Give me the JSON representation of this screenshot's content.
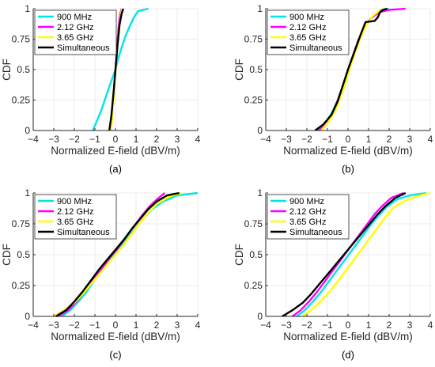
{
  "series_style": {
    "900 MHz": "#00e5e5",
    "2.12 GHz": "#ff00ff",
    "3.65 GHz": "#ffff00",
    "Simultaneous": "#000000"
  },
  "chart_data": [
    {
      "type": "line",
      "panel_label": "(a)",
      "xlabel": "Normalized E-field (dBV/m)",
      "ylabel": "CDF",
      "xlim": [
        -4,
        4
      ],
      "ylim": [
        0,
        1
      ],
      "xticks": [
        "−4",
        "−3",
        "−2",
        "−1",
        "0",
        "1",
        "2",
        "3",
        "4"
      ],
      "yticks": [
        "0",
        "0.25",
        "0.5",
        "0.75",
        "1"
      ],
      "grid": true,
      "legend": {
        "placement": "top-left",
        "entries": [
          "900 MHz",
          "2.12 GHz",
          "3.65 GHz",
          "Simultaneous"
        ]
      },
      "series": [
        {
          "name": "900 MHz",
          "x": [
            -1.1,
            -0.9,
            -0.7,
            -0.5,
            -0.3,
            -0.15,
            0,
            0.15,
            0.3,
            0.5,
            0.7,
            0.9,
            1.1,
            1.6
          ],
          "y": [
            0,
            0.08,
            0.16,
            0.26,
            0.36,
            0.43,
            0.5,
            0.6,
            0.68,
            0.78,
            0.86,
            0.93,
            0.98,
            1
          ]
        },
        {
          "name": "2.12 GHz",
          "x": [
            -0.22,
            -0.15,
            -0.08,
            0,
            0.08,
            0.15,
            0.22,
            0.3
          ],
          "y": [
            0,
            0.15,
            0.3,
            0.5,
            0.7,
            0.85,
            0.95,
            1
          ]
        },
        {
          "name": "3.65 GHz",
          "x": [
            -0.22,
            -0.14,
            -0.06,
            0.02,
            0.1,
            0.18,
            0.26,
            0.32
          ],
          "y": [
            0,
            0.15,
            0.33,
            0.52,
            0.7,
            0.85,
            0.95,
            1
          ]
        },
        {
          "name": "Simultaneous",
          "x": [
            -0.3,
            -0.2,
            -0.1,
            0,
            0.1,
            0.2,
            0.3,
            0.38
          ],
          "y": [
            0,
            0.12,
            0.3,
            0.5,
            0.7,
            0.87,
            0.96,
            1
          ]
        }
      ]
    },
    {
      "type": "line",
      "panel_label": "(b)",
      "xlabel": "Normalized E-field (dBV/m)",
      "ylabel": "CDF",
      "xlim": [
        -4,
        4
      ],
      "ylim": [
        0,
        1
      ],
      "xticks": [
        "−4",
        "−3",
        "−2",
        "−1",
        "0",
        "1",
        "2",
        "3",
        "4"
      ],
      "yticks": [
        "0",
        "0.25",
        "0.5",
        "0.75",
        "1"
      ],
      "grid": true,
      "legend": {
        "placement": "top-left",
        "entries": [
          "900 MHz",
          "2.12 GHz",
          "3.65 GHz",
          "Simultaneous"
        ]
      },
      "series": [
        {
          "name": "900 MHz",
          "x": [
            -1.5,
            -1.1,
            -0.8,
            -0.5,
            -0.25,
            0,
            0.25,
            0.5,
            0.75,
            1.0,
            1.3,
            1.6,
            2.0
          ],
          "y": [
            0,
            0.06,
            0.14,
            0.25,
            0.37,
            0.5,
            0.62,
            0.74,
            0.84,
            0.9,
            0.95,
            0.99,
            1
          ]
        },
        {
          "name": "2.12 GHz",
          "x": [
            -1.4,
            -1.0,
            -0.7,
            -0.45,
            -0.2,
            0,
            0.25,
            0.5,
            0.8,
            1.1,
            1.5,
            2.0,
            2.8
          ],
          "y": [
            0,
            0.07,
            0.16,
            0.27,
            0.39,
            0.5,
            0.62,
            0.74,
            0.85,
            0.92,
            0.97,
            0.99,
            1
          ]
        },
        {
          "name": "3.65 GHz",
          "x": [
            -1.3,
            -0.95,
            -0.6,
            -0.35,
            -0.1,
            0.1,
            0.35,
            0.6,
            0.9,
            1.2,
            1.5,
            1.8
          ],
          "y": [
            0,
            0.07,
            0.17,
            0.28,
            0.4,
            0.52,
            0.64,
            0.76,
            0.87,
            0.94,
            0.98,
            1
          ]
        },
        {
          "name": "Simultaneous",
          "x": [
            -1.6,
            -1.2,
            -0.8,
            -0.5,
            -0.25,
            0,
            0.3,
            0.6,
            0.85,
            1.3,
            1.45,
            1.55,
            1.7,
            1.9
          ],
          "y": [
            0,
            0.05,
            0.13,
            0.24,
            0.37,
            0.5,
            0.64,
            0.78,
            0.89,
            0.9,
            0.93,
            0.97,
            0.99,
            1
          ]
        }
      ]
    },
    {
      "type": "line",
      "panel_label": "(c)",
      "xlabel": "Normalized E-field (dBV/m)",
      "ylabel": "CDF",
      "xlim": [
        -4,
        4
      ],
      "ylim": [
        0,
        1
      ],
      "xticks": [
        "−4",
        "−3",
        "−2",
        "−1",
        "0",
        "1",
        "2",
        "3",
        "4"
      ],
      "yticks": [
        "0",
        "0.25",
        "0.5",
        "0.75",
        "1"
      ],
      "grid": true,
      "legend": {
        "placement": "top-left",
        "entries": [
          "900 MHz",
          "2.12 GHz",
          "3.65 GHz",
          "Simultaneous"
        ]
      },
      "series": [
        {
          "name": "900 MHz",
          "x": [
            -2.6,
            -2.2,
            -1.8,
            -1.4,
            -1.0,
            -0.6,
            -0.2,
            0.2,
            0.6,
            1.0,
            1.4,
            1.8,
            2.3,
            3.0,
            4.0
          ],
          "y": [
            0,
            0.05,
            0.12,
            0.2,
            0.3,
            0.4,
            0.48,
            0.56,
            0.64,
            0.72,
            0.8,
            0.87,
            0.93,
            0.98,
            1
          ]
        },
        {
          "name": "2.12 GHz",
          "x": [
            -2.8,
            -2.3,
            -1.9,
            -1.5,
            -1.1,
            -0.7,
            -0.3,
            0.1,
            0.5,
            0.9,
            1.3,
            1.7,
            2.1,
            2.4
          ],
          "y": [
            0,
            0.05,
            0.12,
            0.2,
            0.29,
            0.38,
            0.47,
            0.55,
            0.64,
            0.73,
            0.82,
            0.9,
            0.96,
            1
          ]
        },
        {
          "name": "3.65 GHz",
          "x": [
            -3.0,
            -2.5,
            -2.0,
            -1.6,
            -1.2,
            -0.8,
            -0.4,
            0,
            0.4,
            0.8,
            1.2,
            1.6,
            2.0,
            2.6,
            3.2
          ],
          "y": [
            0,
            0.05,
            0.11,
            0.18,
            0.26,
            0.34,
            0.42,
            0.5,
            0.58,
            0.67,
            0.76,
            0.84,
            0.91,
            0.97,
            1
          ]
        },
        {
          "name": "Simultaneous",
          "x": [
            -2.9,
            -2.4,
            -2.0,
            -1.6,
            -1.2,
            -0.8,
            -0.4,
            0,
            0.4,
            0.8,
            1.2,
            1.6,
            2.0,
            2.5,
            3.1
          ],
          "y": [
            0,
            0.05,
            0.12,
            0.2,
            0.29,
            0.38,
            0.46,
            0.54,
            0.62,
            0.71,
            0.79,
            0.87,
            0.93,
            0.98,
            1
          ]
        }
      ]
    },
    {
      "type": "line",
      "panel_label": "(d)",
      "xlabel": "Normalized E-field (dBV/m)",
      "ylabel": "CDF",
      "xlim": [
        -4,
        4
      ],
      "ylim": [
        0,
        1
      ],
      "xticks": [
        "−4",
        "−3",
        "−2",
        "−1",
        "0",
        "1",
        "2",
        "3",
        "4"
      ],
      "yticks": [
        "0",
        "0.25",
        "0.5",
        "0.75",
        "1"
      ],
      "grid": true,
      "legend": {
        "placement": "top-left",
        "entries": [
          "900 MHz",
          "2.12 GHz",
          "3.65 GHz",
          "Simultaneous"
        ]
      },
      "series": [
        {
          "name": "900 MHz",
          "x": [
            -2.5,
            -2.1,
            -1.7,
            -1.3,
            -0.9,
            -0.5,
            -0.1,
            0.3,
            0.7,
            1.1,
            1.5,
            1.9,
            2.4,
            3.0,
            3.8
          ],
          "y": [
            0,
            0.05,
            0.12,
            0.2,
            0.29,
            0.38,
            0.47,
            0.56,
            0.65,
            0.74,
            0.82,
            0.89,
            0.95,
            0.98,
            1
          ]
        },
        {
          "name": "2.12 GHz",
          "x": [
            -2.7,
            -2.3,
            -1.9,
            -1.5,
            -1.1,
            -0.7,
            -0.3,
            0.1,
            0.5,
            0.9,
            1.3,
            1.7,
            2.1,
            2.7
          ],
          "y": [
            0,
            0.05,
            0.12,
            0.2,
            0.29,
            0.38,
            0.47,
            0.56,
            0.65,
            0.74,
            0.83,
            0.9,
            0.96,
            1
          ]
        },
        {
          "name": "3.65 GHz",
          "x": [
            -2.2,
            -1.8,
            -1.4,
            -1.0,
            -0.6,
            -0.2,
            0.2,
            0.6,
            1.0,
            1.4,
            1.8,
            2.2,
            2.8,
            3.5,
            4.0
          ],
          "y": [
            0,
            0.05,
            0.11,
            0.18,
            0.26,
            0.35,
            0.44,
            0.53,
            0.62,
            0.71,
            0.8,
            0.88,
            0.94,
            0.98,
            1
          ]
        },
        {
          "name": "Simultaneous",
          "x": [
            -3.2,
            -2.7,
            -2.2,
            -1.8,
            -1.4,
            -1.0,
            -0.6,
            -0.2,
            0.2,
            0.6,
            1.0,
            1.4,
            1.8,
            2.3,
            2.8
          ],
          "y": [
            0,
            0.05,
            0.11,
            0.18,
            0.26,
            0.34,
            0.42,
            0.5,
            0.58,
            0.66,
            0.74,
            0.82,
            0.89,
            0.96,
            1
          ]
        }
      ]
    }
  ]
}
